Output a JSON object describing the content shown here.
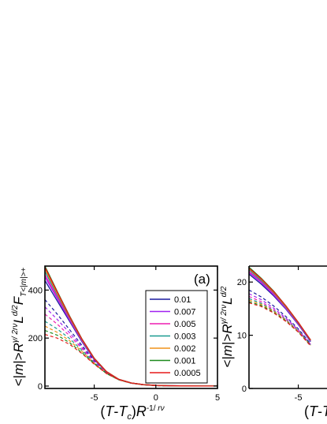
{
  "chart_data": [
    {
      "panel": "a",
      "type": "line",
      "panel_label": "(a)",
      "xlabel": "(T-T_c)R^{-1/rν}",
      "ylabel": "<|m|>R^{γ/2rν}L^{d/2}F_{T<|m|>+}",
      "xlim": [
        -9,
        5
      ],
      "ylim": [
        -10,
        500
      ],
      "xticks": [
        -5,
        0,
        5
      ],
      "yticks": [
        0,
        200,
        400
      ],
      "grid": false,
      "legend_position": "upper-right",
      "legend": [
        {
          "name": "0.01",
          "color": "#1a1a9e"
        },
        {
          "name": "0.007",
          "color": "#a020f0"
        },
        {
          "name": "0.005",
          "color": "#ee1fb0"
        },
        {
          "name": "0.003",
          "color": "#1a9a8f"
        },
        {
          "name": "0.002",
          "color": "#f0921a"
        },
        {
          "name": "0.001",
          "color": "#1d8a1d"
        },
        {
          "name": "0.0005",
          "color": "#e61a1a"
        }
      ],
      "x": [
        -9,
        -8,
        -7,
        -6,
        -5,
        -4,
        -3,
        -2,
        -1,
        0,
        1,
        2,
        3,
        4,
        5
      ],
      "series_solid": [
        {
          "name": "0.01",
          "color": "#1a1a9e",
          "values": [
            440,
            355,
            270,
            185,
            110,
            58,
            28,
            13,
            6,
            3,
            1.5,
            0.8,
            0.4,
            0.2,
            0.1
          ]
        },
        {
          "name": "0.007",
          "color": "#a020f0",
          "values": [
            455,
            365,
            275,
            188,
            112,
            59,
            28,
            13,
            6,
            3,
            1.5,
            0.8,
            0.4,
            0.2,
            0.1
          ]
        },
        {
          "name": "0.005",
          "color": "#ee1fb0",
          "values": [
            465,
            372,
            280,
            190,
            113,
            59,
            28,
            13,
            6,
            3,
            1.5,
            0.8,
            0.4,
            0.2,
            0.1
          ]
        },
        {
          "name": "0.003",
          "color": "#1a9a8f",
          "values": [
            478,
            380,
            285,
            193,
            114,
            60,
            28,
            13,
            6,
            3,
            1.5,
            0.8,
            0.4,
            0.2,
            0.1
          ]
        },
        {
          "name": "0.002",
          "color": "#f0921a",
          "values": [
            488,
            386,
            288,
            195,
            115,
            60,
            28,
            13,
            6,
            3,
            1.5,
            0.8,
            0.4,
            0.2,
            0.1
          ]
        },
        {
          "name": "0.001",
          "color": "#1d8a1d",
          "values": [
            500,
            395,
            292,
            197,
            116,
            60,
            28,
            13,
            6,
            3,
            1.5,
            0.8,
            0.4,
            0.2,
            0.1
          ]
        },
        {
          "name": "0.0005",
          "color": "#e61a1a",
          "values": [
            495,
            392,
            290,
            196,
            115,
            60,
            28,
            13,
            6,
            3,
            1.5,
            0.8,
            0.4,
            0.2,
            0.1
          ]
        }
      ],
      "series_dashed": [
        {
          "name": "0.01",
          "color": "#1a1a9e",
          "values": [
            360,
            300,
            235,
            170,
            106,
            57,
            27,
            12,
            5,
            2,
            1,
            0.5,
            0.2,
            0.1,
            0.05
          ]
        },
        {
          "name": "0.007",
          "color": "#a020f0",
          "values": [
            330,
            278,
            222,
            163,
            103,
            56,
            27,
            12,
            5,
            2,
            1,
            0.5,
            0.2,
            0.1,
            0.05
          ]
        },
        {
          "name": "0.005",
          "color": "#ee1fb0",
          "values": [
            300,
            258,
            210,
            157,
            100,
            55,
            27,
            12,
            5,
            2,
            1,
            0.5,
            0.2,
            0.1,
            0.05
          ]
        },
        {
          "name": "0.003",
          "color": "#1a9a8f",
          "values": [
            270,
            238,
            198,
            150,
            97,
            54,
            26,
            12,
            5,
            2,
            1,
            0.5,
            0.2,
            0.1,
            0.05
          ]
        },
        {
          "name": "0.002",
          "color": "#f0921a",
          "values": [
            250,
            224,
            189,
            145,
            95,
            53,
            26,
            12,
            5,
            2,
            1,
            0.5,
            0.2,
            0.1,
            0.05
          ]
        },
        {
          "name": "0.001",
          "color": "#1d8a1d",
          "values": [
            232,
            212,
            181,
            140,
            93,
            52,
            26,
            12,
            5,
            2,
            1,
            0.5,
            0.2,
            0.1,
            0.05
          ]
        },
        {
          "name": "0.0005",
          "color": "#e61a1a",
          "values": [
            215,
            200,
            174,
            136,
            91,
            52,
            26,
            12,
            5,
            2,
            1,
            0.5,
            0.2,
            0.1,
            0.05
          ]
        }
      ]
    },
    {
      "panel": "b",
      "type": "line",
      "xlabel": "(T-T",
      "ylabel": "<|m|>R^{γ/2rν}L^{d/2}",
      "xlim": [
        -9,
        5
      ],
      "ylim": [
        0,
        23
      ],
      "xticks": [
        -5
      ],
      "yticks": [
        0,
        10,
        20
      ],
      "grid": false,
      "x": [
        -9,
        -8,
        -7,
        -6,
        -5,
        -4
      ],
      "series_solid": [
        {
          "name": "0.01",
          "color": "#1a1a9e",
          "values": [
            21.5,
            19.6,
            17.4,
            14.9,
            12.0,
            8.8
          ]
        },
        {
          "name": "0.007",
          "color": "#a020f0",
          "values": [
            21.8,
            19.9,
            17.6,
            15.0,
            12.1,
            8.9
          ]
        },
        {
          "name": "0.005",
          "color": "#ee1fb0",
          "values": [
            22.0,
            20.1,
            17.8,
            15.2,
            12.2,
            9.0
          ]
        },
        {
          "name": "0.003",
          "color": "#1a9a8f",
          "values": [
            22.3,
            20.3,
            18.0,
            15.3,
            12.3,
            9.0
          ]
        },
        {
          "name": "0.002",
          "color": "#f0921a",
          "values": [
            22.5,
            20.5,
            18.1,
            15.4,
            12.4,
            9.1
          ]
        },
        {
          "name": "0.001",
          "color": "#1d8a1d",
          "values": [
            22.8,
            20.7,
            18.3,
            15.5,
            12.4,
            9.1
          ]
        },
        {
          "name": "0.0005",
          "color": "#e61a1a",
          "values": [
            22.6,
            20.6,
            18.2,
            15.5,
            12.4,
            9.1
          ]
        }
      ],
      "series_dashed": [
        {
          "name": "0.01",
          "color": "#1a1a9e",
          "values": [
            18.5,
            17.2,
            15.5,
            13.5,
            11.2,
            8.4
          ]
        },
        {
          "name": "0.007",
          "color": "#a020f0",
          "values": [
            17.8,
            16.7,
            15.1,
            13.2,
            11.0,
            8.3
          ]
        },
        {
          "name": "0.005",
          "color": "#ee1fb0",
          "values": [
            17.3,
            16.3,
            14.8,
            13.0,
            10.9,
            8.2
          ]
        },
        {
          "name": "0.003",
          "color": "#1a9a8f",
          "values": [
            16.9,
            16.0,
            14.6,
            12.9,
            10.8,
            8.2
          ]
        },
        {
          "name": "0.002",
          "color": "#f0921a",
          "values": [
            16.6,
            15.8,
            14.5,
            12.8,
            10.7,
            8.1
          ]
        },
        {
          "name": "0.001",
          "color": "#1d8a1d",
          "values": [
            16.3,
            15.6,
            14.3,
            12.7,
            10.6,
            8.1
          ]
        },
        {
          "name": "0.0005",
          "color": "#e61a1a",
          "values": [
            16.1,
            15.4,
            14.2,
            12.6,
            10.6,
            8.0
          ]
        }
      ]
    }
  ]
}
